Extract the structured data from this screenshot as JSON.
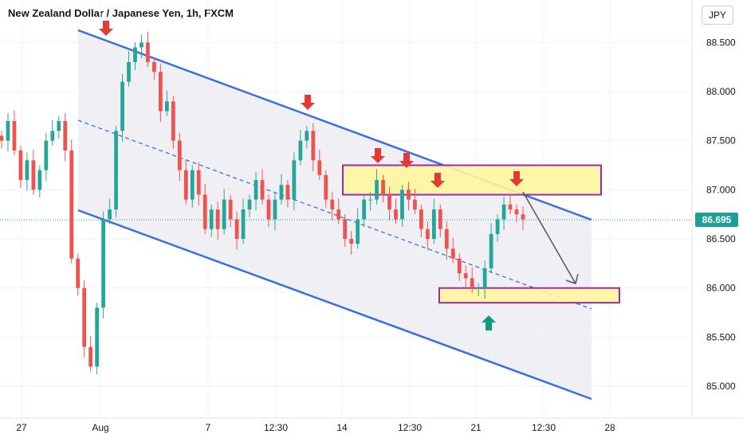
{
  "header": {
    "title": "New Zealand Dollar / Japanese Yen, 1h, FXCM",
    "currency": "JPY"
  },
  "chart_data": {
    "type": "candlestick",
    "title": "New Zealand Dollar / Japanese Yen, 1h, FXCM",
    "ylim": [
      84.7,
      88.9
    ],
    "y_ticks": [
      "88.500",
      "88.000",
      "87.500",
      "87.000",
      "86.500",
      "86.000",
      "85.500",
      "85.000"
    ],
    "x_ticks": [
      "27",
      "Aug",
      "7",
      "12:30",
      "14",
      "12:30",
      "21",
      "12:30",
      "28"
    ],
    "last_price": "86.695",
    "series": [
      {
        "name": "price",
        "values": [
          87.5,
          87.7,
          87.4,
          87.1,
          87.3,
          87.0,
          87.2,
          87.5,
          87.6,
          87.7,
          87.4,
          86.3,
          86.0,
          85.4,
          85.2,
          85.8,
          86.7,
          86.8,
          87.6,
          88.1,
          88.3,
          88.45,
          88.5,
          88.3,
          88.2,
          87.8,
          87.9,
          87.5,
          87.2,
          86.9,
          87.2,
          86.95,
          86.6,
          86.8,
          86.6,
          86.9,
          86.7,
          86.5,
          86.8,
          86.9,
          87.1,
          86.9,
          86.7,
          86.9,
          87.05,
          86.9,
          87.3,
          87.5,
          87.6,
          87.3,
          87.15,
          86.9,
          86.8,
          86.7,
          86.5,
          86.45,
          86.7,
          86.9,
          86.9,
          87.1,
          86.95,
          86.8,
          86.7,
          87.0,
          86.9,
          86.8,
          86.6,
          86.5,
          86.8,
          86.6,
          86.4,
          86.3,
          86.15,
          86.1,
          86.0,
          86.0,
          86.2,
          86.55,
          86.7,
          86.85,
          86.8,
          86.75,
          86.7
        ]
      }
    ],
    "annotations": {
      "upper_channel_line": [
        [
          88.85,
          "start"
        ],
        [
          86.65,
          "end"
        ]
      ],
      "resistance_zone": [
        86.95,
        87.25
      ],
      "support_zone": [
        85.85,
        86.0
      ],
      "projection_target": 85.95
    },
    "colors": {
      "up": "#26a69a",
      "down": "#ef5350",
      "channel": "#3a6fe0",
      "zone_fill": "#fff59d",
      "zone_border": "#9c27b0",
      "arrow_down": "#e53935",
      "arrow_up": "#0d9b7a",
      "last_price": "#1aa096"
    }
  }
}
